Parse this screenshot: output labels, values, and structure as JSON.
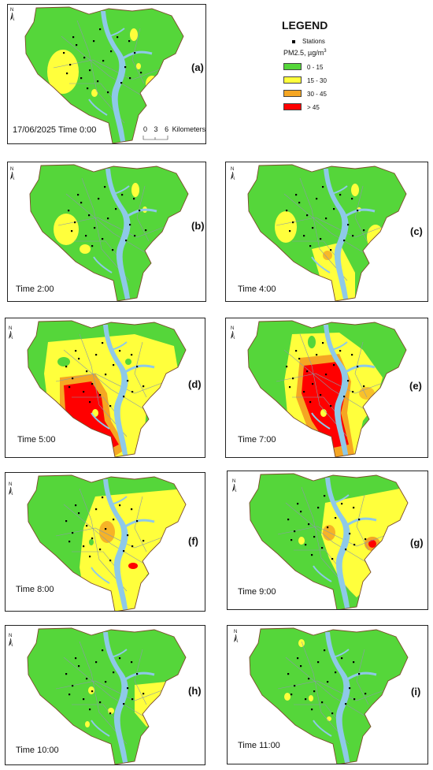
{
  "legend": {
    "title": "LEGEND",
    "stations_label": "Stations",
    "pm_label": "PM2.5, µg/m",
    "pm_exp": "3",
    "classes": [
      {
        "label": "0 - 15",
        "color": "#55d63a"
      },
      {
        "label": "15 - 30",
        "color": "#ffff3c"
      },
      {
        "label": "30 - 45",
        "color": "#f5a623"
      },
      {
        "label": "> 45",
        "color": "#ff0000"
      }
    ]
  },
  "scale": {
    "t0": "0",
    "t1": "3",
    "t2": "6",
    "unit": "Kilometers"
  },
  "north": "N",
  "colors": {
    "river": "#8ec9e8",
    "boundary": "#7a4b2a",
    "station": "#000000",
    "road": "#8a9aa8"
  },
  "panels": [
    {
      "id": "a",
      "label": "(a)",
      "time": "17/06/2025 Time 0:00"
    },
    {
      "id": "b",
      "label": "(b)",
      "time": "Time 2:00"
    },
    {
      "id": "c",
      "label": "(c)",
      "time": "Time 4:00"
    },
    {
      "id": "d",
      "label": "(d)",
      "time": "Time 5:00"
    },
    {
      "id": "e",
      "label": "(e)",
      "time": "Time 7:00"
    },
    {
      "id": "f",
      "label": "(f)",
      "time": "Time 8:00"
    },
    {
      "id": "g",
      "label": "(g)",
      "time": "Time 9:00"
    },
    {
      "id": "h",
      "label": "(h)",
      "time": "Time 10:00"
    },
    {
      "id": "i",
      "label": "(i)",
      "time": "Time 11:00"
    }
  ]
}
